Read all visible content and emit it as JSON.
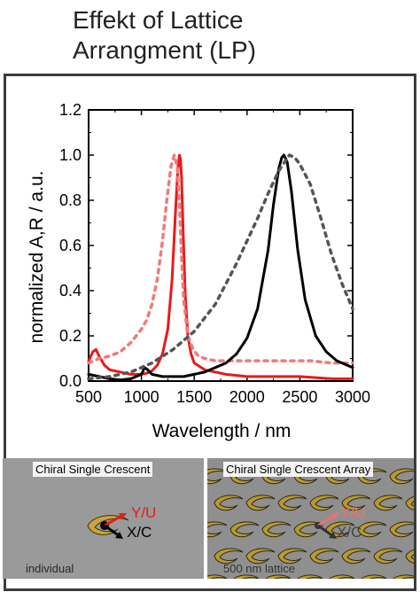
{
  "header": {
    "title_line1": "Effekt of Lattice",
    "title_line2": "Arrangment (LP)"
  },
  "chart_data": {
    "type": "line",
    "xlabel": "Wavelength / nm",
    "ylabel": "normalized A,R / a.u.",
    "xlim": [
      500,
      3000
    ],
    "ylim": [
      0,
      1.2
    ],
    "xticks": [
      500,
      1000,
      1500,
      2000,
      2500,
      3000
    ],
    "yticks": [
      "0.0",
      "0.2",
      "0.4",
      "0.6",
      "0.8",
      "1.0",
      "1.2"
    ],
    "grid": false,
    "series": [
      {
        "style": "solid",
        "color": "#e8191b",
        "x": [
          500,
          540,
          570,
          600,
          650,
          700,
          800,
          900,
          1000,
          1050,
          1100,
          1150,
          1200,
          1250,
          1290,
          1320,
          1345,
          1360,
          1370,
          1380,
          1395,
          1415,
          1440,
          1470,
          1500,
          1600,
          1700,
          1800,
          2000,
          2200,
          2500,
          2800,
          3000
        ],
        "y": [
          0.09,
          0.13,
          0.14,
          0.11,
          0.07,
          0.05,
          0.04,
          0.03,
          0.03,
          0.035,
          0.045,
          0.07,
          0.12,
          0.23,
          0.45,
          0.72,
          0.94,
          1.0,
          0.98,
          0.9,
          0.66,
          0.38,
          0.2,
          0.12,
          0.08,
          0.05,
          0.04,
          0.03,
          0.02,
          0.02,
          0.02,
          0.01,
          0.01
        ]
      },
      {
        "style": "dotted",
        "color": "#f07a7a",
        "x": [
          500,
          600,
          700,
          800,
          900,
          1000,
          1050,
          1100,
          1150,
          1200,
          1240,
          1280,
          1310,
          1340,
          1360,
          1380,
          1400,
          1440,
          1490,
          1540,
          1600,
          1700,
          1800,
          2000,
          2200,
          2400,
          2600,
          2800,
          3000
        ],
        "y": [
          0.08,
          0.1,
          0.11,
          0.13,
          0.17,
          0.23,
          0.27,
          0.34,
          0.45,
          0.62,
          0.8,
          0.95,
          1.0,
          0.95,
          0.78,
          0.55,
          0.36,
          0.2,
          0.14,
          0.11,
          0.1,
          0.09,
          0.09,
          0.09,
          0.09,
          0.09,
          0.09,
          0.08,
          0.08
        ]
      },
      {
        "style": "solid",
        "color": "#000000",
        "x": [
          500,
          600,
          700,
          800,
          900,
          950,
          1000,
          1030,
          1060,
          1100,
          1200,
          1300,
          1400,
          1500,
          1600,
          1700,
          1800,
          1900,
          2000,
          2100,
          2200,
          2250,
          2300,
          2330,
          2350,
          2380,
          2420,
          2480,
          2550,
          2650,
          2750,
          2850,
          3000
        ],
        "y": [
          0.03,
          0.02,
          0.01,
          0.005,
          0.01,
          0.02,
          0.03,
          0.06,
          0.05,
          0.03,
          0.02,
          0.02,
          0.02,
          0.03,
          0.04,
          0.06,
          0.08,
          0.12,
          0.19,
          0.32,
          0.58,
          0.78,
          0.94,
          0.99,
          1.0,
          0.97,
          0.84,
          0.58,
          0.36,
          0.2,
          0.13,
          0.09,
          0.06
        ]
      },
      {
        "style": "dotted",
        "color": "#555555",
        "x": [
          500,
          700,
          900,
          1100,
          1300,
          1500,
          1700,
          1900,
          2000,
          2100,
          2200,
          2300,
          2400,
          2450,
          2500,
          2600,
          2700,
          2800,
          2900,
          3000
        ],
        "y": [
          0.01,
          0.02,
          0.04,
          0.08,
          0.14,
          0.22,
          0.34,
          0.52,
          0.62,
          0.72,
          0.83,
          0.93,
          1.0,
          0.99,
          0.96,
          0.87,
          0.72,
          0.56,
          0.43,
          0.32
        ]
      }
    ]
  },
  "panels": {
    "left": {
      "title": "Chiral Single Crescent",
      "label_red": "Y/U",
      "label_black": "X/C",
      "caption": "individual",
      "red_color": "#e8191b"
    },
    "right": {
      "title": "Chiral Single Crescent Array",
      "label_red": "Y/U",
      "label_black": "X/C",
      "caption": "500 nm lattice",
      "red_color": "#ff6a6a"
    }
  }
}
